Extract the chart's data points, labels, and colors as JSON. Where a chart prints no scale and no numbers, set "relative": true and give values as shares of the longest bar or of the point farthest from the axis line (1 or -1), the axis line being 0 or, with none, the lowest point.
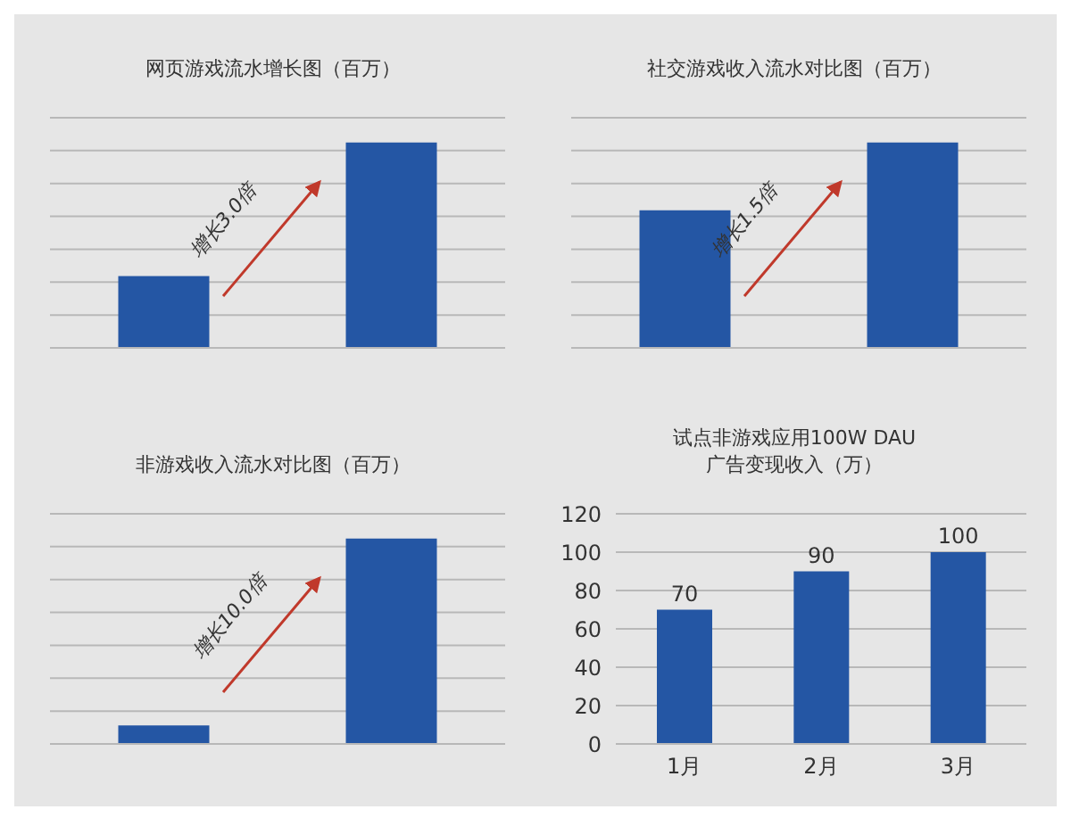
{
  "chart_data": [
    {
      "type": "bar",
      "title": "网页游戏流水增长图（百万）",
      "categories": [
        null,
        null
      ],
      "values": [
        0.35,
        1
      ],
      "color": "#2456a4",
      "relative": true,
      "grid": "y",
      "annotations": [
        "增长3.0倍"
      ]
    },
    {
      "type": "bar",
      "title": "社交游戏收入流水对比图（百万）",
      "categories": [
        null,
        null
      ],
      "values": [
        0.67,
        1
      ],
      "color": "#2456a4",
      "relative": true,
      "grid": "y",
      "annotations": [
        "增长1.5倍"
      ]
    },
    {
      "type": "bar",
      "title": "非游戏收入流水对比图（百万）",
      "categories": [
        null,
        null
      ],
      "values": [
        0.09,
        1
      ],
      "color": "#2456a4",
      "relative": true,
      "grid": "y",
      "annotations": [
        "增长10.0倍"
      ]
    },
    {
      "type": "bar",
      "title": "试点非游戏应用100W DAU\n广告变现收入（万）",
      "categories": [
        "1月",
        "2月",
        "3月"
      ],
      "values": [
        70,
        90,
        100
      ],
      "color": "#2456a4",
      "ylim": [
        0,
        120
      ],
      "yticks": [
        0,
        20,
        40,
        60,
        80,
        100,
        120
      ],
      "grid": "y",
      "data_labels": true
    }
  ]
}
